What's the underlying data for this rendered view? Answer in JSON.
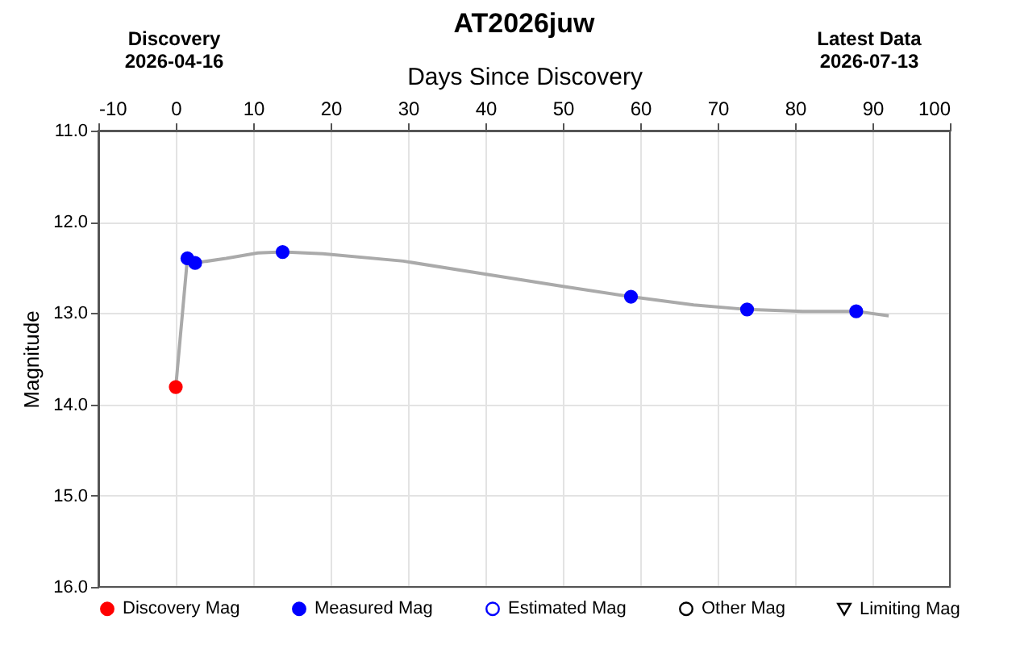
{
  "chart_data": {
    "type": "scatter",
    "title": "AT2026juw",
    "xlabel": "Days Since Discovery",
    "ylabel": "Magnitude",
    "annotations": [
      "Discovery\n2026-04-16",
      "Latest Data\n2026-07-13"
    ],
    "xlim": [
      -10,
      100
    ],
    "xticks": [
      -10,
      0,
      10,
      20,
      30,
      40,
      50,
      60,
      70,
      80,
      90,
      100
    ],
    "ylim": [
      16,
      11
    ],
    "yticks": [
      {
        "value": 11,
        "label": "11.0"
      },
      {
        "value": 12,
        "label": "12.0"
      },
      {
        "value": 13,
        "label": "13.0"
      },
      {
        "value": 14,
        "label": "14.0"
      },
      {
        "value": 15,
        "label": "15.0"
      },
      {
        "value": 16,
        "label": "16.0"
      }
    ],
    "grid": true,
    "legend": "bottom",
    "series": [
      {
        "type": "line",
        "color": "#aaaaaa",
        "marker": "none",
        "x": [
          0,
          1.5,
          2.5,
          6.5,
          10.6,
          13.8,
          19,
          29.4,
          39.8,
          50.2,
          58.8,
          66.9,
          73.8,
          81,
          87.9,
          92.1
        ],
        "values": [
          13.81,
          12.4,
          12.45,
          12.4,
          12.34,
          12.33,
          12.35,
          12.43,
          12.57,
          12.71,
          12.82,
          12.91,
          12.96,
          12.98,
          12.98,
          13.03
        ]
      },
      {
        "name": "Discovery Mag",
        "color": "#ff0000",
        "marker": "circle",
        "x": [
          0
        ],
        "values": [
          13.81
        ]
      },
      {
        "name": "Measured Mag",
        "color": "#0000ff",
        "marker": "circle",
        "x": [
          1.5,
          2.5,
          13.8,
          58.8,
          73.8,
          87.9
        ],
        "values": [
          12.4,
          12.45,
          12.33,
          12.82,
          12.96,
          12.98
        ]
      },
      {
        "name": "Estimated Mag",
        "color": "#0000ff",
        "marker": "circle"
      },
      {
        "name": "Other Mag",
        "color": "#000000",
        "marker": "circle"
      },
      {
        "name": "Limiting Mag",
        "color": "#000000",
        "marker": "triangle"
      }
    ]
  }
}
